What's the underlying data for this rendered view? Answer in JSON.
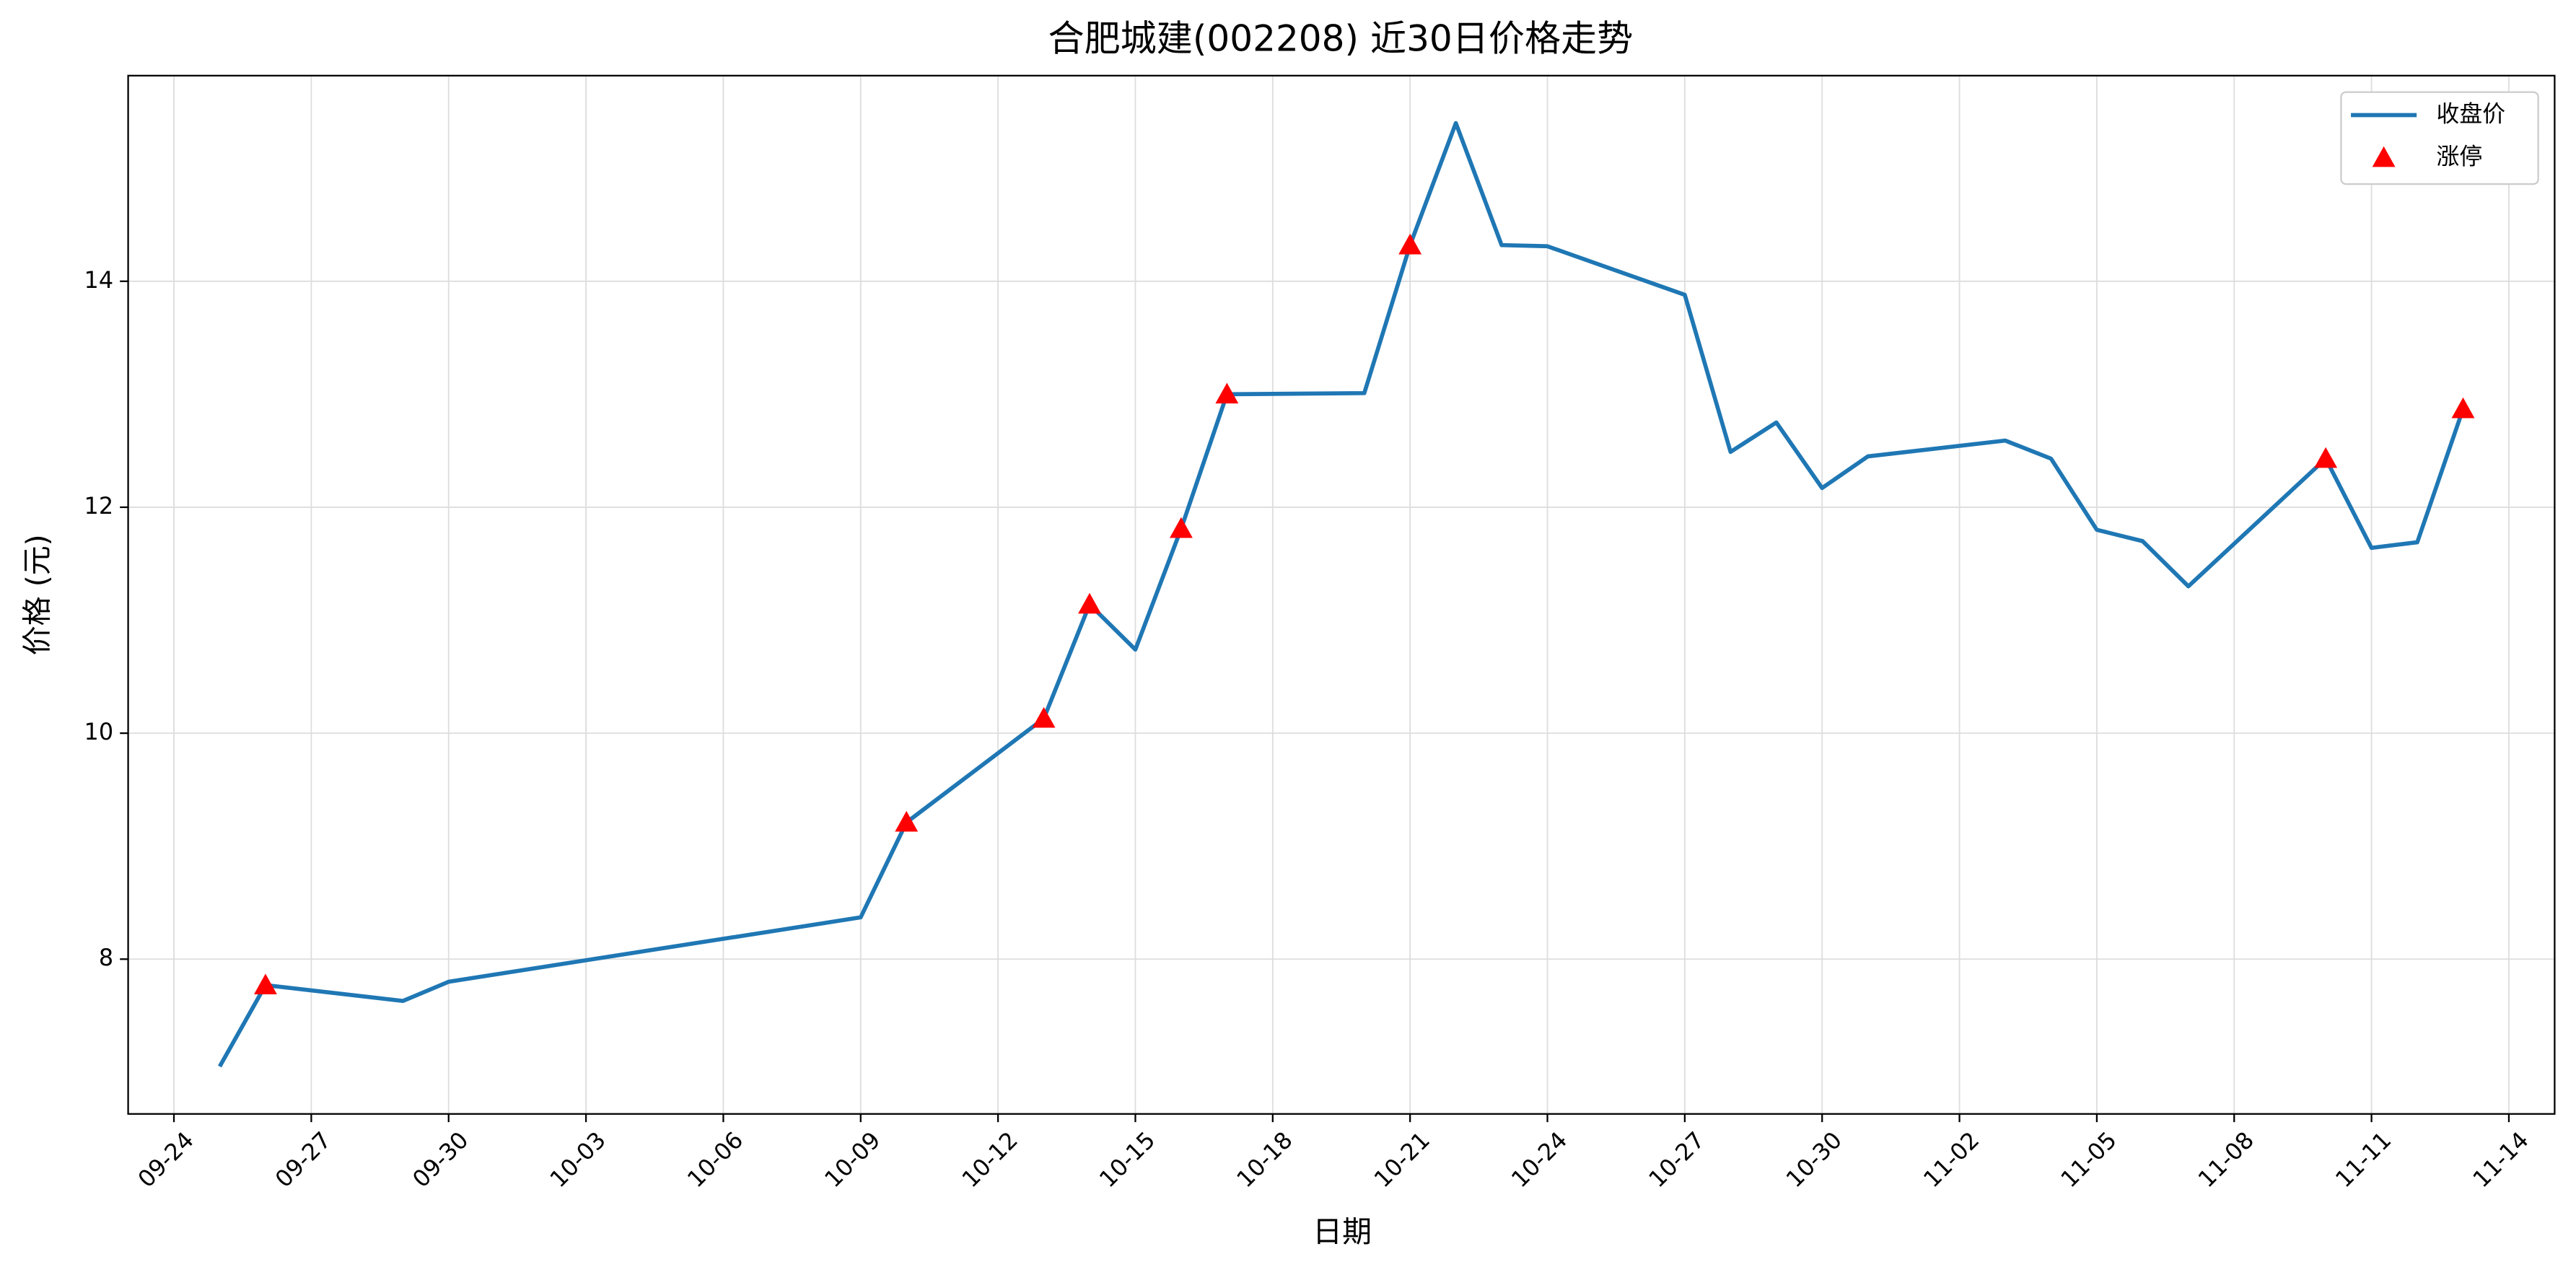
{
  "chart_data": {
    "type": "line",
    "title": "合肥城建(002208) 近30日价格走势",
    "x_label": "日期",
    "y_label": "价格 (元)",
    "series": [
      {
        "name": "收盘价",
        "color": "#1f77b4",
        "x": [
          "09-25",
          "09-26",
          "09-29",
          "09-30",
          "10-09",
          "10-10",
          "10-13",
          "10-14",
          "10-15",
          "10-16",
          "10-17",
          "10-20",
          "10-21",
          "10-22",
          "10-23",
          "10-24",
          "10-27",
          "10-28",
          "10-29",
          "10-30",
          "10-31",
          "11-03",
          "11-04",
          "11-05",
          "11-06",
          "11-07",
          "11-10",
          "11-11",
          "11-12",
          "11-13"
        ],
        "values": [
          7.05,
          7.77,
          7.63,
          7.8,
          8.37,
          9.21,
          10.13,
          11.14,
          10.74,
          11.81,
          13.0,
          13.01,
          14.32,
          15.4,
          14.32,
          14.31,
          13.88,
          12.49,
          12.75,
          12.17,
          12.45,
          12.59,
          12.43,
          11.8,
          11.7,
          11.3,
          12.43,
          11.64,
          11.69,
          12.87
        ]
      },
      {
        "name": "涨停",
        "color": "red",
        "type": "scatter",
        "marker": "^",
        "x": [
          "09-26",
          "10-10",
          "10-13",
          "10-14",
          "10-16",
          "10-17",
          "10-21",
          "11-10",
          "11-13"
        ],
        "values": [
          7.77,
          9.21,
          10.13,
          11.14,
          11.81,
          13.0,
          14.32,
          12.43,
          12.87
        ]
      }
    ],
    "xlim": [
      "09-23",
      "11-15"
    ],
    "xticks": [
      "09-24",
      "09-27",
      "09-30",
      "10-03",
      "10-06",
      "10-09",
      "10-12",
      "10-15",
      "10-18",
      "10-21",
      "10-24",
      "10-27",
      "10-30",
      "11-02",
      "11-05",
      "11-08",
      "11-11",
      "11-14"
    ],
    "ylim": [
      6.63,
      15.82
    ],
    "yticks": [
      8,
      10,
      12,
      14
    ],
    "grid": true,
    "legend": "upper right"
  }
}
